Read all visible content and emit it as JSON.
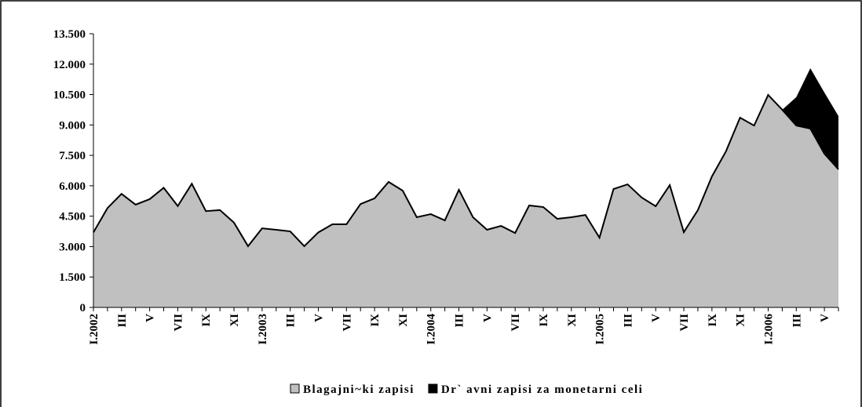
{
  "chart_data": {
    "type": "stacked_area",
    "categories": [
      "I.2002",
      null,
      "III",
      null,
      "V",
      null,
      "VII",
      null,
      "IX",
      null,
      "XI",
      null,
      "I.2003",
      null,
      "III",
      null,
      "V",
      null,
      "VII",
      null,
      "IX",
      null,
      "XI",
      null,
      "I.2004",
      null,
      "III",
      null,
      "V",
      null,
      "VII",
      null,
      "IX",
      null,
      "XI",
      null,
      "I.2005",
      null,
      "III",
      null,
      "V",
      null,
      "VII",
      null,
      "IX",
      null,
      "XI",
      null,
      "I.2006",
      null,
      "III",
      null,
      "V",
      null
    ],
    "series": [
      {
        "name": "Blagajni~ki zapisi",
        "color": "#c0c0c0",
        "values": [
          3700,
          4900,
          5600,
          5070,
          5340,
          5900,
          5000,
          6100,
          4750,
          4800,
          4180,
          3020,
          3900,
          3830,
          3750,
          3020,
          3700,
          4100,
          4100,
          5100,
          5380,
          6190,
          5760,
          4450,
          4600,
          4290,
          5800,
          4450,
          3830,
          4020,
          3670,
          5030,
          4950,
          4370,
          4450,
          4560,
          3440,
          5840,
          6070,
          5420,
          4990,
          6030,
          3710,
          4800,
          6460,
          7700,
          9360,
          8970,
          10480,
          9750,
          8970,
          8820,
          7580,
          6810
        ]
      },
      {
        "name": "Dr` avni zapisi za monetarni celi",
        "color": "#000000",
        "values": [
          0,
          0,
          0,
          0,
          0,
          0,
          0,
          0,
          0,
          0,
          0,
          0,
          0,
          0,
          0,
          0,
          0,
          0,
          0,
          0,
          0,
          0,
          0,
          0,
          0,
          0,
          0,
          0,
          0,
          0,
          0,
          0,
          0,
          0,
          0,
          0,
          0,
          0,
          0,
          0,
          0,
          0,
          0,
          0,
          0,
          0,
          0,
          0,
          0,
          0,
          1400,
          2980,
          3020,
          2630
        ]
      }
    ],
    "ylim": [
      0,
      13500
    ],
    "yticks": [
      0,
      {
        "value": 1500,
        "label": "1.500"
      },
      {
        "value": 3000,
        "label": "3.000"
      },
      {
        "value": 4500,
        "label": "4.500"
      },
      {
        "value": 6000,
        "label": "6.000"
      },
      {
        "value": 7500,
        "label": "7.500"
      },
      {
        "value": 9000,
        "label": "9.000"
      },
      {
        "value": 10500,
        "label": "10.500"
      },
      {
        "value": 12000,
        "label": "12.000"
      },
      {
        "value": 13500,
        "label": "13.500"
      }
    ],
    "grid": false,
    "legend": "bottom"
  }
}
